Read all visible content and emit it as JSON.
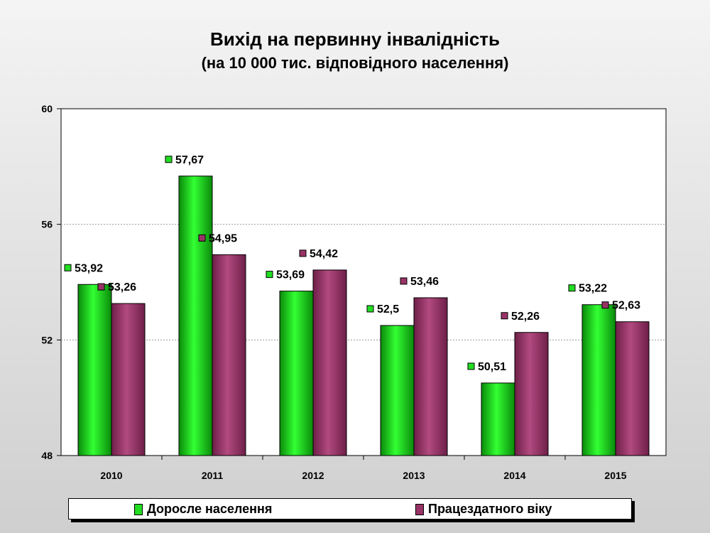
{
  "chart_data": {
    "type": "bar",
    "title": "Вихід на первинну інвалідність",
    "subtitle": "(на 10 000 тис. відповідного населення)",
    "categories": [
      "2010",
      "2011",
      "2012",
      "2013",
      "2014",
      "2015"
    ],
    "series": [
      {
        "name": "Доросле населення",
        "color": "#22dd22",
        "values": [
          53.92,
          57.67,
          53.69,
          52.5,
          50.51,
          53.22
        ],
        "labels": [
          "53,92",
          "57,67",
          "53,69",
          "52,5",
          "50,51",
          "53,22"
        ]
      },
      {
        "name": "Працездатного віку",
        "color": "#993366",
        "values": [
          53.26,
          54.95,
          54.42,
          53.46,
          52.26,
          52.63
        ],
        "labels": [
          "53,26",
          "54,95",
          "54,42",
          "53,46",
          "52,26",
          "52,63"
        ]
      }
    ],
    "ylim": [
      48,
      60
    ],
    "yticks": [
      48,
      52,
      56,
      60
    ],
    "grid": true,
    "legend": "bottom"
  }
}
